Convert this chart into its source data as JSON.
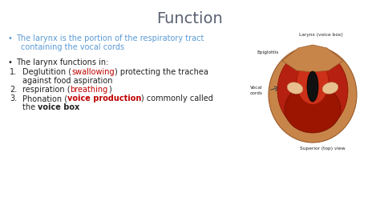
{
  "background_color": "#ffffff",
  "title": "Function",
  "title_color": "#5a6170",
  "title_fontsize": 14,
  "bullet1_color": "#5b9bd5",
  "bullet2_color": "#222222",
  "body_fontsize": 7.0,
  "red_color": "#c00000",
  "dark_color": "#222222",
  "image_labels": {
    "larynx": "Larynx (voice box)",
    "epiglottis": "Epiglottis",
    "vocal": "Vocal\ncords",
    "superior": "Superior (top) view"
  }
}
